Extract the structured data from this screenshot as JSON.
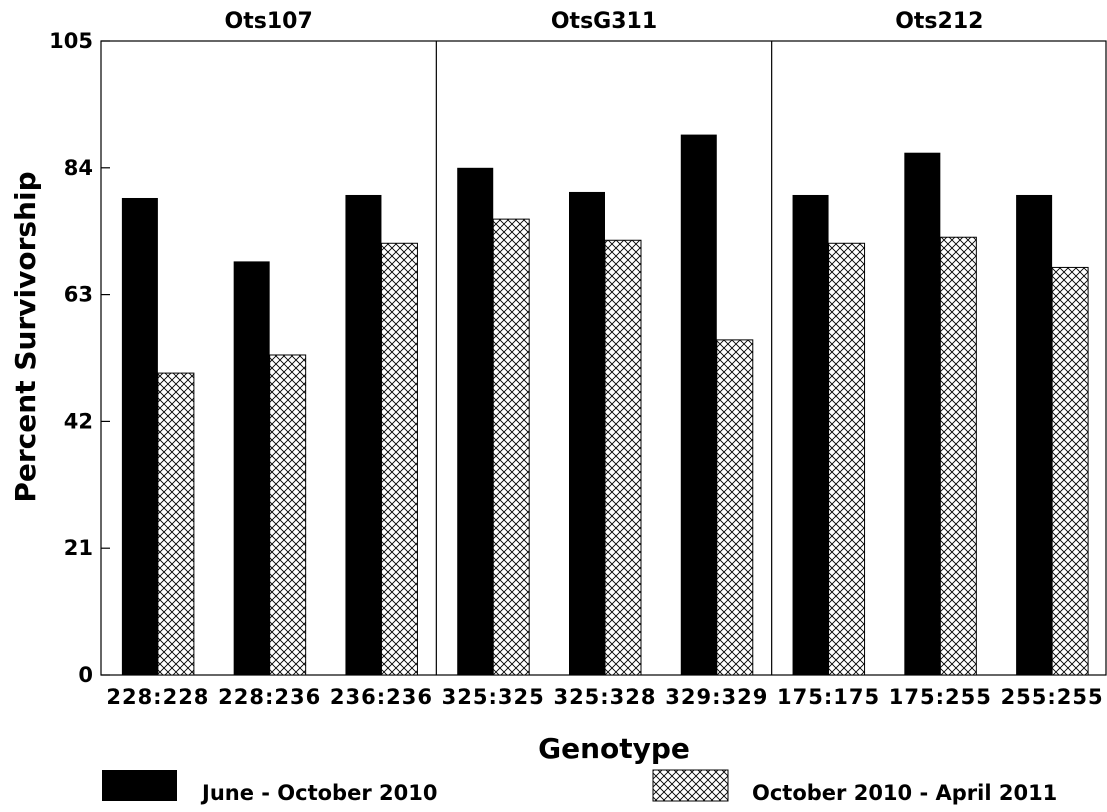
{
  "chart_data": {
    "type": "bar",
    "xlabel": "Genotype",
    "ylabel": "Percent Survivorship",
    "ylim": [
      0,
      105
    ],
    "yticks": [
      0,
      21,
      42,
      63,
      84,
      105
    ],
    "grid": false,
    "legend_position": "bottom",
    "series": [
      {
        "name": "June - October 2010",
        "fill": "solid",
        "color": "#000000"
      },
      {
        "name": "October 2010 - April 2011",
        "fill": "crosshatch",
        "color": "#ffffff"
      }
    ],
    "panels": [
      {
        "title": "Ots107",
        "categories": [
          "228:228",
          "228:236",
          "236:236"
        ],
        "values": [
          [
            79,
            68.5,
            79.5
          ],
          [
            50,
            53,
            71.5
          ]
        ]
      },
      {
        "title": "OtsG311",
        "categories": [
          "325:325",
          "325:328",
          "329:329"
        ],
        "values": [
          [
            84,
            80,
            89.5
          ],
          [
            75.5,
            72,
            55.5
          ]
        ]
      },
      {
        "title": "Ots212",
        "categories": [
          "175:175",
          "175:255",
          "255:255"
        ],
        "values": [
          [
            79.5,
            86.5,
            79.5
          ],
          [
            71.5,
            72.5,
            67.5
          ]
        ]
      }
    ]
  }
}
